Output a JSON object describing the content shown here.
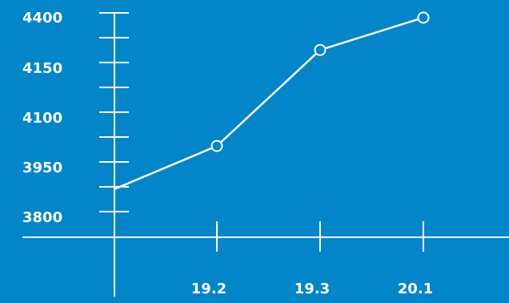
{
  "chart_data": {
    "type": "line",
    "title": "",
    "xlabel": "",
    "ylabel": "",
    "x_tick_labels": [
      "19.2",
      "19.3",
      "20.1"
    ],
    "y_tick_labels": [
      "3800",
      "3950",
      "4100",
      "4150",
      "4400"
    ],
    "points": [
      {
        "x": "start",
        "y": 3885
      },
      {
        "x": "19.2",
        "y": 4015
      },
      {
        "x": "19.3",
        "y": 4240
      },
      {
        "x": "20.1",
        "y": 4400
      }
    ],
    "grid": false,
    "legend": "none",
    "colors": {
      "background": "#0285c9",
      "line": "#ffffff",
      "marker_fill": "#0285c9"
    }
  }
}
